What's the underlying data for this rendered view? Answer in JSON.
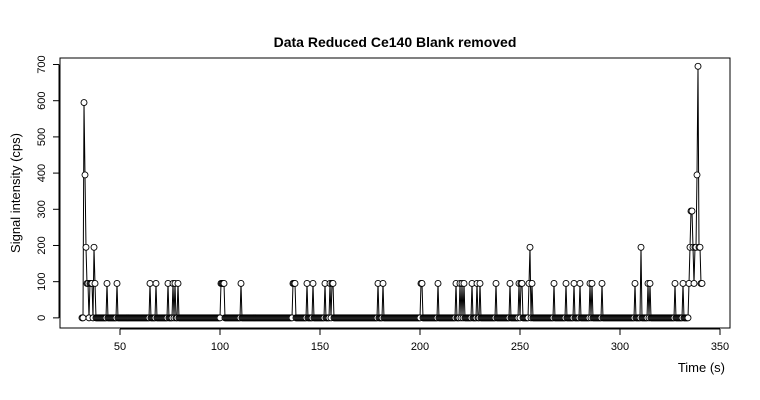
{
  "chart_data": {
    "type": "line",
    "title": "Data Reduced Ce140 Blank removed",
    "xlabel": "Time (s)",
    "ylabel": "Signal intensity (cps)",
    "xlim": [
      20,
      355
    ],
    "ylim": [
      -28,
      718
    ],
    "xticks": [
      50,
      100,
      150,
      200,
      250,
      300,
      350
    ],
    "yticks": [
      0,
      100,
      200,
      300,
      400,
      500,
      600,
      700
    ],
    "grid": false,
    "sample_interval": 0.5,
    "series": [
      {
        "baseline": 0,
        "x_start": 31,
        "x_end": 341,
        "x": [
          32,
          32.5,
          33,
          33.5,
          34,
          35,
          35.5,
          36,
          37,
          37.5,
          43.5,
          48.5,
          65,
          68,
          74,
          76.5,
          77.5,
          79,
          100.5,
          101,
          101.5,
          102,
          110.5,
          136.5,
          137,
          137.5,
          143.5,
          146.5,
          152.5,
          155,
          156,
          156.5,
          179,
          181.5,
          200.5,
          201,
          209,
          218,
          220,
          221,
          222,
          226,
          228.5,
          230,
          238,
          245,
          249.5,
          250.5,
          251,
          254.5,
          255,
          256,
          267,
          273,
          277,
          280,
          285,
          286,
          291,
          307.5,
          310.5,
          314,
          315,
          327.5,
          331.5,
          334.5,
          335,
          335.5,
          336,
          336.5,
          337,
          337.5,
          338,
          338.5,
          339,
          339.5,
          340,
          340.5,
          341
        ],
        "y": [
          595,
          395,
          195,
          95,
          95,
          95,
          95,
          95,
          195,
          95,
          95,
          95,
          95,
          95,
          95,
          95,
          95,
          95,
          95,
          95,
          95,
          95,
          95,
          95,
          95,
          95,
          95,
          95,
          95,
          95,
          95,
          95,
          95,
          95,
          95,
          95,
          95,
          95,
          95,
          95,
          95,
          95,
          95,
          95,
          95,
          95,
          95,
          95,
          95,
          95,
          195,
          95,
          95,
          95,
          95,
          95,
          95,
          95,
          95,
          95,
          195,
          95,
          95,
          95,
          95,
          95,
          195,
          295,
          295,
          195,
          95,
          195,
          195,
          395,
          695,
          195,
          195,
          95,
          95
        ]
      }
    ]
  }
}
